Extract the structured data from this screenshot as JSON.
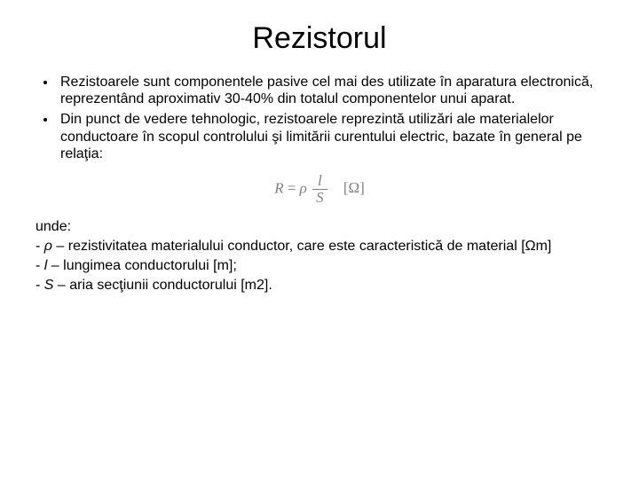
{
  "title": "Rezistorul",
  "bullets": [
    "Rezistoarele sunt componentele pasive cel mai des utilizate în aparatura electronică, reprezentând aproximativ 30-40% din totalul componentelor unui aparat.",
    "Din punct de vedere tehnologic, rezistoarele reprezintă utilizări ale materialelor conductoare în scopul controlului şi limitării curentului electric, bazate în general pe relaţia:"
  ],
  "formula": {
    "lhs": "R",
    "eq": "=",
    "rho": "ρ",
    "num": "l",
    "den": "S",
    "unit": "[Ω]",
    "color": "#808080",
    "font": "Times New Roman",
    "fontsize": 17
  },
  "where_label": "unde:",
  "defs": [
    {
      "sym": "ρ",
      "text": " – rezistivitatea materialului conductor, care este caracteristică de material [Ωm]"
    },
    {
      "sym": "l",
      "text": " – lungimea conductorului [m];"
    },
    {
      "sym": "S",
      "text": " – aria secţiunii conductorului [m2]."
    }
  ],
  "style": {
    "background_color": "#ffffff",
    "text_color": "#000000",
    "title_fontsize": 34,
    "body_fontsize": 16,
    "font_family": "Arial"
  }
}
